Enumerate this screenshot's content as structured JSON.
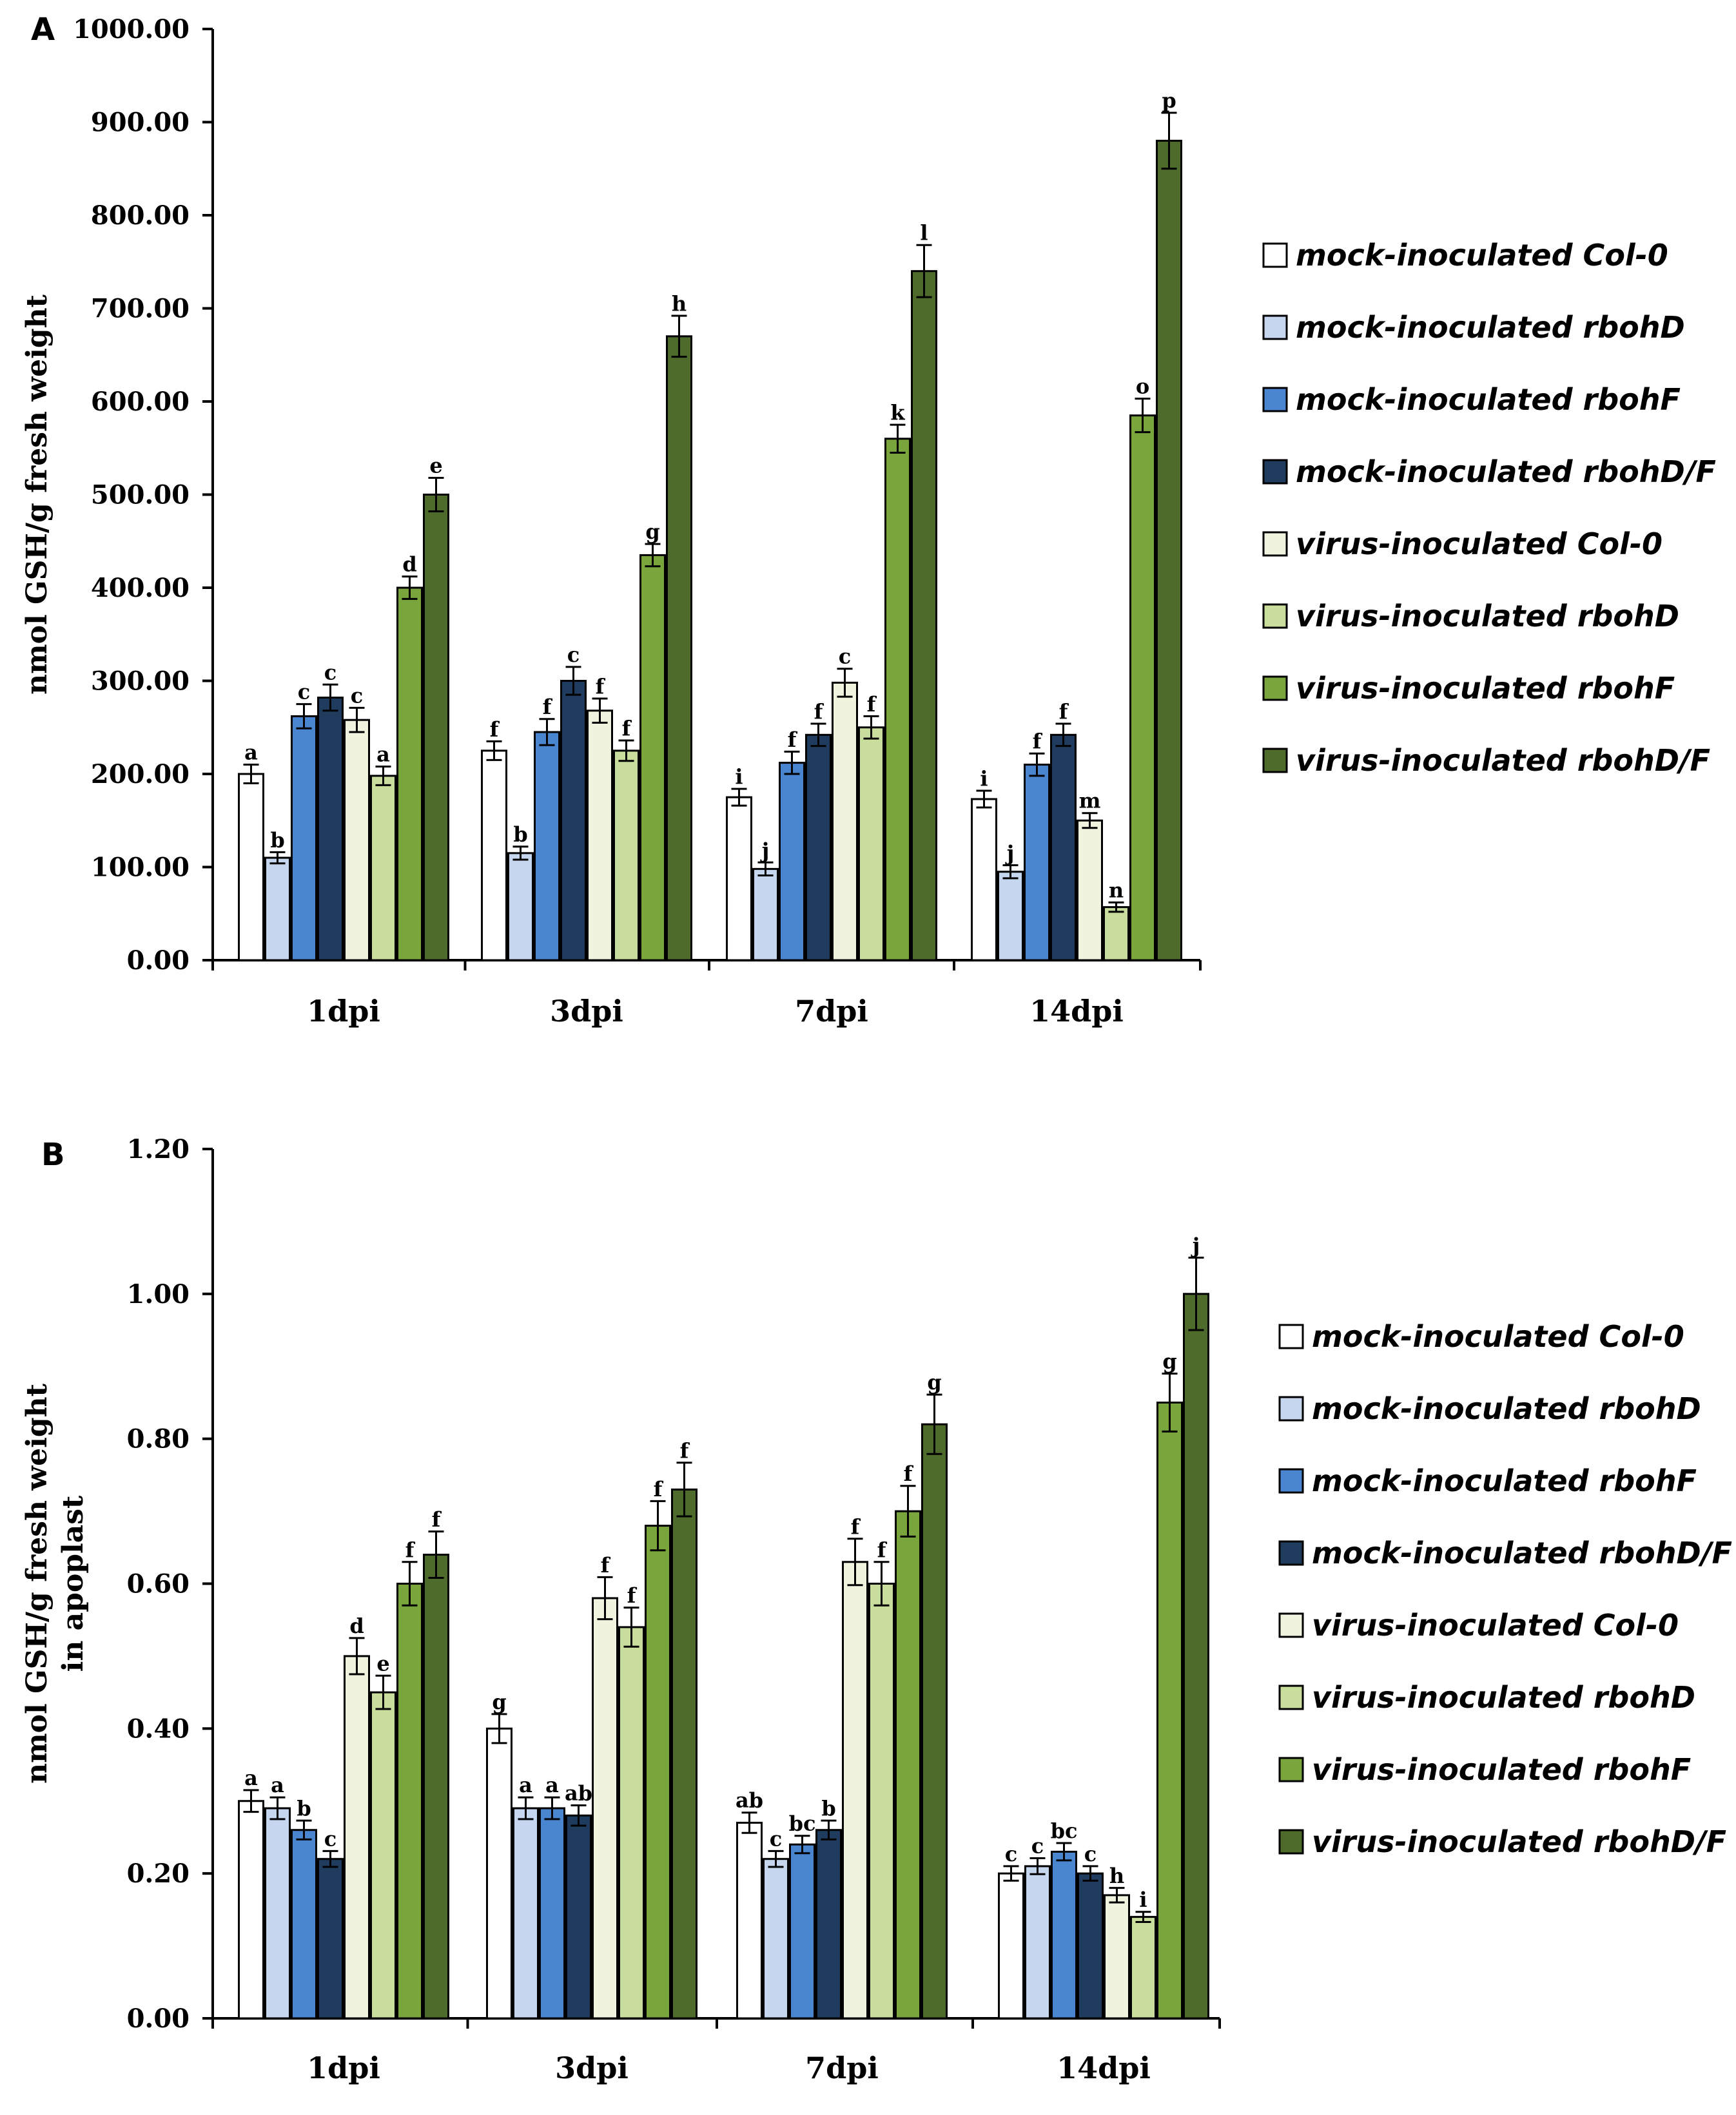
{
  "series_styles": [
    {
      "name": "mock-inoculated Col-0",
      "color": "#ffffff"
    },
    {
      "name": "mock-inoculated rbohD",
      "color": "#c5d6ee"
    },
    {
      "name": "mock-inoculated rbohF",
      "color": "#4a86d0"
    },
    {
      "name": "mock-inoculated rbohD/F",
      "color": "#1f3b5e"
    },
    {
      "name": "virus-inoculated Col-0",
      "color": "#f0f4df"
    },
    {
      "name": "virus-inoculated rbohD",
      "color": "#c9dd9c"
    },
    {
      "name": "virus-inoculated rbohF",
      "color": "#79a53c"
    },
    {
      "name": "virus-inoculated rbohD/F",
      "color": "#4e6b2b"
    }
  ],
  "chart_data": [
    {
      "type": "bar",
      "panel": "A",
      "ylabel": "nmol GSH/g  fresh weight",
      "ylim": [
        0,
        1000
      ],
      "yticks": [
        "0.00",
        "100.00",
        "200.00",
        "300.00",
        "400.00",
        "500.00",
        "600.00",
        "700.00",
        "800.00",
        "900.00",
        "1000.00"
      ],
      "categories": [
        "1dpi",
        "3dpi",
        "7dpi",
        "14dpi"
      ],
      "series": [
        {
          "name": "mock-inoculated Col-0",
          "values": [
            200,
            225,
            175,
            173
          ],
          "errors": [
            10,
            10,
            9,
            9
          ],
          "letters": [
            "a",
            "f",
            "i",
            "i"
          ]
        },
        {
          "name": "mock-inoculated rbohD",
          "values": [
            110,
            115,
            98,
            95
          ],
          "errors": [
            6,
            7,
            7,
            7
          ],
          "letters": [
            "b",
            "b",
            "j",
            "j"
          ]
        },
        {
          "name": "mock-inoculated rbohF",
          "values": [
            262,
            245,
            212,
            210
          ],
          "errors": [
            13,
            14,
            12,
            12
          ],
          "letters": [
            "c",
            "f",
            "f",
            "f"
          ]
        },
        {
          "name": "mock-inoculated rbohD/F",
          "values": [
            282,
            300,
            242,
            242
          ],
          "errors": [
            14,
            15,
            12,
            12
          ],
          "letters": [
            "c",
            "c",
            "f",
            "f"
          ]
        },
        {
          "name": "virus-inoculated Col-0",
          "values": [
            258,
            268,
            298,
            150
          ],
          "errors": [
            13,
            13,
            15,
            8
          ],
          "letters": [
            "c",
            "f",
            "c",
            "m"
          ]
        },
        {
          "name": "virus-inoculated rbohD",
          "values": [
            198,
            225,
            250,
            57
          ],
          "errors": [
            10,
            11,
            12,
            5
          ],
          "letters": [
            "a",
            "f",
            "f",
            "n"
          ]
        },
        {
          "name": "virus-inoculated rbohF",
          "values": [
            400,
            435,
            560,
            585
          ],
          "errors": [
            12,
            12,
            15,
            18
          ],
          "letters": [
            "d",
            "g",
            "k",
            "o"
          ]
        },
        {
          "name": "virus-inoculated rbohD/F",
          "values": [
            500,
            670,
            740,
            880
          ],
          "errors": [
            18,
            22,
            28,
            30
          ],
          "letters": [
            "e",
            "h",
            "l",
            "p"
          ]
        }
      ]
    },
    {
      "type": "bar",
      "panel": "B",
      "ylabel": [
        "nmol GSH/g  fresh weight",
        "in apoplast"
      ],
      "ylim": [
        0,
        1.2
      ],
      "yticks": [
        "0.00",
        "0.20",
        "0.40",
        "0.60",
        "0.80",
        "1.00",
        "1.20"
      ],
      "categories": [
        "1dpi",
        "3dpi",
        "7dpi",
        "14dpi"
      ],
      "series": [
        {
          "name": "mock-inoculated Col-0",
          "values": [
            0.3,
            0.4,
            0.27,
            0.2
          ],
          "errors": [
            0.015,
            0.02,
            0.014,
            0.01
          ],
          "letters": [
            "a",
            "g",
            "ab",
            "c"
          ]
        },
        {
          "name": "mock-inoculated rbohD",
          "values": [
            0.29,
            0.29,
            0.22,
            0.21
          ],
          "errors": [
            0.015,
            0.015,
            0.011,
            0.011
          ],
          "letters": [
            "a",
            "a",
            "c",
            "c"
          ]
        },
        {
          "name": "mock-inoculated rbohF",
          "values": [
            0.26,
            0.29,
            0.24,
            0.23
          ],
          "errors": [
            0.013,
            0.015,
            0.012,
            0.012
          ],
          "letters": [
            "b",
            "a",
            "bc",
            "bc"
          ]
        },
        {
          "name": "mock-inoculated rbohD/F",
          "values": [
            0.22,
            0.28,
            0.26,
            0.2
          ],
          "errors": [
            0.011,
            0.014,
            0.013,
            0.01
          ],
          "letters": [
            "c",
            "ab",
            "b",
            "c"
          ]
        },
        {
          "name": "virus-inoculated Col-0",
          "values": [
            0.5,
            0.58,
            0.63,
            0.17
          ],
          "errors": [
            0.025,
            0.029,
            0.032,
            0.01
          ],
          "letters": [
            "d",
            "f",
            "f",
            "h"
          ]
        },
        {
          "name": "virus-inoculated rbohD",
          "values": [
            0.45,
            0.54,
            0.6,
            0.14
          ],
          "errors": [
            0.023,
            0.027,
            0.03,
            0.007
          ],
          "letters": [
            "e",
            "f",
            "f",
            "i"
          ]
        },
        {
          "name": "virus-inoculated rbohF",
          "values": [
            0.6,
            0.68,
            0.7,
            0.85
          ],
          "errors": [
            0.03,
            0.034,
            0.035,
            0.04
          ],
          "letters": [
            "f",
            "f",
            "f",
            "g"
          ]
        },
        {
          "name": "virus-inoculated rbohD/F",
          "values": [
            0.64,
            0.73,
            0.82,
            1.0
          ],
          "errors": [
            0.032,
            0.037,
            0.041,
            0.05
          ],
          "letters": [
            "f",
            "f",
            "g",
            "j"
          ]
        }
      ]
    }
  ]
}
